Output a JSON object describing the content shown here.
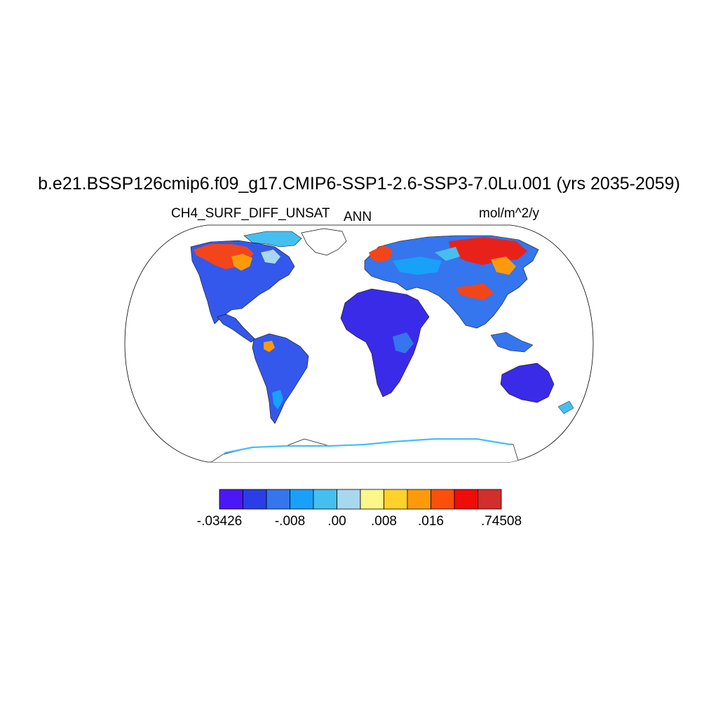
{
  "title": "b.e21.BSSP126cmip6.f09_g17.CMIP6-SSP1-2.6-SSP3-7.0Lu.001 (yrs 2035-2059)",
  "left_subtitle": "CH4_SURF_DIFF_UNSAT",
  "center_subtitle": "ANN",
  "right_subtitle": "mol/m^2/y",
  "map": {
    "projection": "Robinson",
    "ocean_color": "#ffffff",
    "antarctica_color": "#ffffff"
  },
  "colorbar": {
    "colors": [
      "#4b18f5",
      "#2b3ee6",
      "#3575ee",
      "#19a0f9",
      "#45bff0",
      "#a8d8f0",
      "#fdf68a",
      "#fdd22c",
      "#fd9a0c",
      "#fb4f0c",
      "#f00c08",
      "#d22e2c"
    ],
    "labels": [
      {
        "text": "-.03426",
        "boundary": 0
      },
      {
        "text": "-.008",
        "boundary": 3
      },
      {
        "text": ".00",
        "boundary": 5
      },
      {
        "text": ".008",
        "boundary": 7
      },
      {
        "text": ".016",
        "boundary": 9
      },
      {
        "text": ".74508",
        "boundary": 12
      }
    ]
  }
}
